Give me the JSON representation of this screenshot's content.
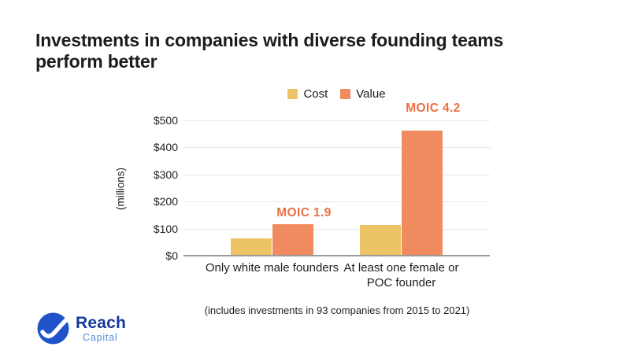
{
  "title": {
    "line1": "Investments in companies with diverse founding teams",
    "line2": "perform better"
  },
  "chart_data": {
    "type": "bar",
    "categories": [
      "Only white male founders",
      "At least one female or POC founder"
    ],
    "series": [
      {
        "name": "Cost",
        "color": "#ecc466",
        "values": [
          60,
          110
        ]
      },
      {
        "name": "Value",
        "color": "#f08b5f",
        "values": [
          113,
          460
        ]
      }
    ],
    "annotations": [
      {
        "label": "MOIC 1.9",
        "group": 0
      },
      {
        "label": "MOIC 4.2",
        "group": 1
      }
    ],
    "annotation_color": "#ec6f44",
    "ylabel": "(millions)",
    "y_ticks": [
      "$0",
      "$100",
      "$200",
      "$300",
      "$400",
      "$500"
    ],
    "ylim": [
      0,
      500
    ],
    "grid": true,
    "legend_position": "top"
  },
  "footnote": "(includes investments in 93 companies from 2015 to 2021)",
  "logo": {
    "name": "Reach",
    "subtitle": "Capital",
    "circle_color": "#2052c9",
    "name_color": "#16389d",
    "subtitle_color": "#4b8fd6"
  }
}
